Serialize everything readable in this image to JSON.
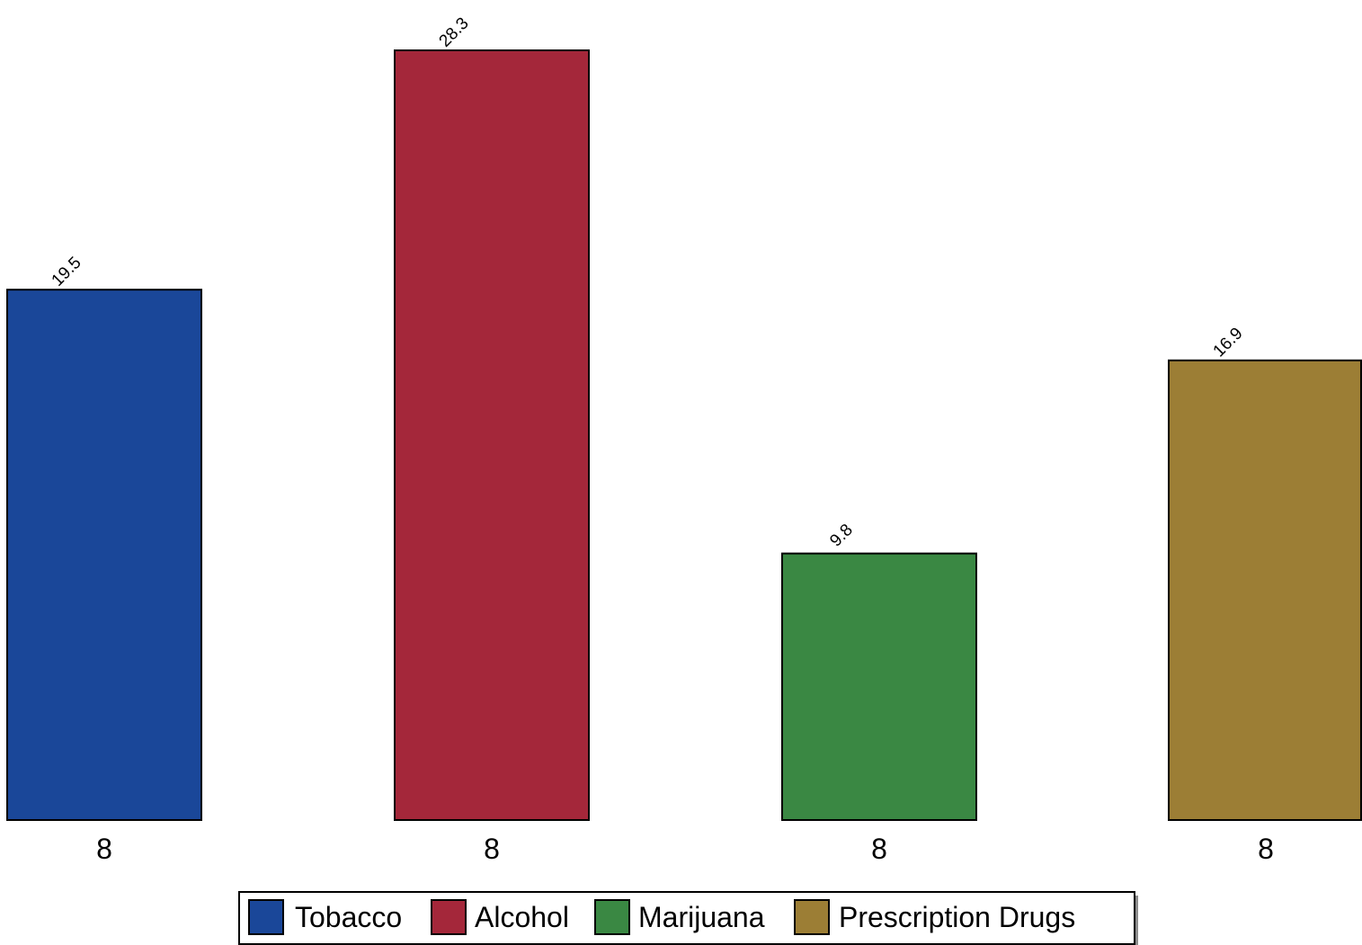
{
  "chart_data": {
    "type": "bar",
    "categories": [
      "8",
      "8",
      "8",
      "8"
    ],
    "series": [
      {
        "name": "Tobacco",
        "values": [
          19.5,
          null,
          null,
          null
        ],
        "color": "#1a4799"
      },
      {
        "name": "Alcohol",
        "values": [
          null,
          28.3,
          null,
          null
        ],
        "color": "#a4273a"
      },
      {
        "name": "Marijuana",
        "values": [
          null,
          null,
          9.8,
          null
        ],
        "color": "#3a8843"
      },
      {
        "name": "Prescription Drugs",
        "values": [
          null,
          null,
          null,
          16.9
        ],
        "color": "#9c7e35"
      }
    ],
    "data_labels": [
      "19.5",
      "28.3",
      "9.8",
      "16.9"
    ],
    "title": "",
    "xlabel": "",
    "ylabel": "",
    "ylim": [
      0,
      28.3
    ],
    "grid": false,
    "legend_position": "bottom"
  }
}
